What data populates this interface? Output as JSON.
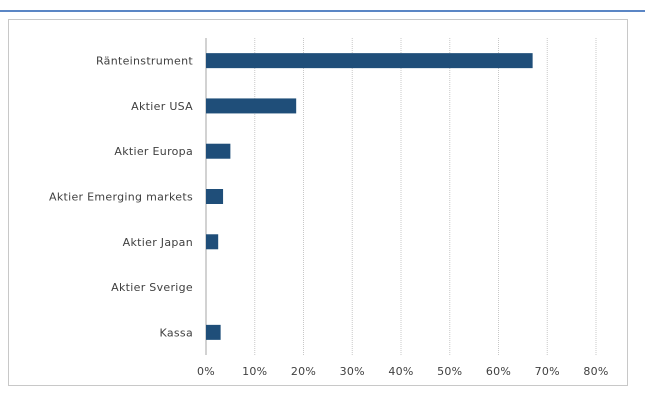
{
  "chart_data": {
    "type": "bar",
    "orientation": "horizontal",
    "categories": [
      "Ränteinstrument",
      "Aktier USA",
      "Aktier Europa",
      "Aktier Emerging markets",
      "Aktier Japan",
      "Aktier Sverige",
      "Kassa"
    ],
    "values": [
      67,
      18.5,
      5,
      3.5,
      2.5,
      0,
      3
    ],
    "value_unit": "%",
    "xlim": [
      0,
      80
    ],
    "xticks": [
      0,
      10,
      20,
      30,
      40,
      50,
      60,
      70,
      80
    ],
    "xtick_labels": [
      "0%",
      "10%",
      "20%",
      "30%",
      "40%",
      "50%",
      "60%",
      "70%",
      "80%"
    ],
    "title": "",
    "xlabel": "",
    "ylabel": "",
    "grid": "vertical gridlines",
    "legend": "none",
    "colors": {
      "bar": "#1f4e79",
      "grid": "#c8c8c8",
      "text": "#404040",
      "top_rule": "#5b86c5"
    }
  }
}
